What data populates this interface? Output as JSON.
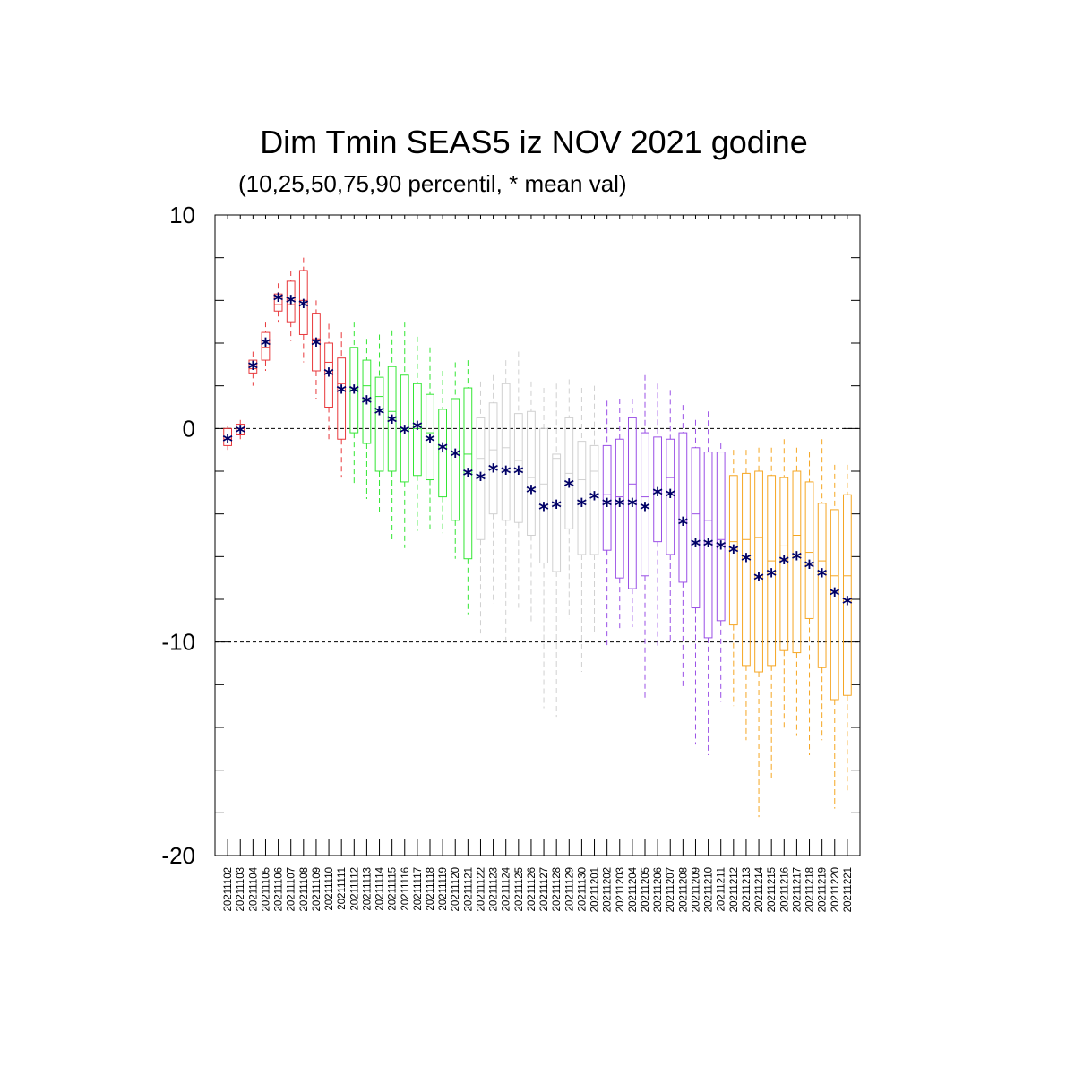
{
  "chart_data": {
    "type": "box",
    "title": "Dim Tmin SEAS5 iz NOV 2021 godine",
    "subtitle": "(10,25,50,75,90 percentil, * mean val)",
    "xlabel": "",
    "ylabel": "",
    "ylim": [
      -20,
      10
    ],
    "yticks": [
      -20,
      -10,
      0,
      10
    ],
    "dashed_reference_lines": [
      10,
      0,
      -10
    ],
    "grid": false,
    "legend": "none",
    "colors": {
      "red": "#e8383b",
      "green": "#33e633",
      "gray": "#d0d0d0",
      "purple": "#9a4fe6",
      "orange": "#f5a623",
      "mean": "#000066"
    },
    "categories": [
      "20211102",
      "20211103",
      "20211104",
      "20211105",
      "20211106",
      "20211107",
      "20211108",
      "20211109",
      "20211110",
      "20211111",
      "20211112",
      "20211113",
      "20211114",
      "20211115",
      "20211116",
      "20211117",
      "20211118",
      "20211119",
      "20211120",
      "20211121",
      "20211122",
      "20211123",
      "20211124",
      "20211125",
      "20211126",
      "20211127",
      "20211128",
      "20211129",
      "20211130",
      "20211201",
      "20211202",
      "20211203",
      "20211204",
      "20211205",
      "20211206",
      "20211207",
      "20211208",
      "20211209",
      "20211210",
      "20211211",
      "20211212",
      "20211213",
      "20211214",
      "20211215",
      "20211216",
      "20211217",
      "20211218",
      "20211219",
      "20211220",
      "20211221"
    ],
    "category_colors": [
      "red",
      "red",
      "red",
      "red",
      "red",
      "red",
      "red",
      "red",
      "red",
      "red",
      "green",
      "green",
      "green",
      "green",
      "green",
      "green",
      "green",
      "green",
      "green",
      "green",
      "gray",
      "gray",
      "gray",
      "gray",
      "gray",
      "gray",
      "gray",
      "gray",
      "gray",
      "gray",
      "purple",
      "purple",
      "purple",
      "purple",
      "purple",
      "purple",
      "purple",
      "purple",
      "purple",
      "purple",
      "orange",
      "orange",
      "orange",
      "orange",
      "orange",
      "orange",
      "orange",
      "orange",
      "orange",
      "orange"
    ],
    "p10": [
      -1.0,
      -0.5,
      2.0,
      2.7,
      5.0,
      4.1,
      3.1,
      1.4,
      -0.5,
      -2.3,
      -2.6,
      -3.3,
      -4.0,
      -5.3,
      -5.6,
      -4.8,
      -4.7,
      -4.9,
      -6.1,
      -8.7,
      -9.6,
      -8.2,
      -9.9,
      -8.4,
      -9.1,
      -13.1,
      -13.5,
      -8.9,
      -11.4,
      -9.6,
      -10.2,
      -9.4,
      -9.3,
      -12.7,
      -10.2,
      -10.0,
      -12.1,
      -14.8,
      -15.3,
      -12.8,
      -13.0,
      -14.6,
      -18.2,
      -16.5,
      -14.1,
      -14.4,
      -15.3,
      -14.6,
      -17.8,
      -17.0
    ],
    "p25": [
      -0.8,
      -0.3,
      2.6,
      3.2,
      5.5,
      5.0,
      4.4,
      2.7,
      1.0,
      -0.5,
      -0.2,
      -0.7,
      -2.0,
      -2.0,
      -2.5,
      -2.2,
      -2.4,
      -3.2,
      -4.3,
      -6.1,
      -5.2,
      -4.0,
      -4.3,
      -4.4,
      -5.0,
      -6.3,
      -6.7,
      -4.7,
      -5.9,
      -5.9,
      -5.7,
      -7.0,
      -7.5,
      -6.9,
      -5.3,
      -5.9,
      -7.2,
      -8.4,
      -9.8,
      -9.0,
      -9.2,
      -11.1,
      -11.4,
      -11.1,
      -10.4,
      -10.5,
      -8.9,
      -11.2,
      -12.7,
      -12.5
    ],
    "p50": [
      -0.5,
      0.0,
      2.8,
      3.8,
      5.8,
      5.8,
      6.0,
      4.2,
      3.1,
      2.1,
      1.8,
      2.0,
      1.5,
      0.8,
      0.0,
      0.0,
      -0.2,
      -1.1,
      -1.1,
      -1.2,
      -1.4,
      -1.0,
      -0.9,
      -1.5,
      -2.3,
      -2.6,
      -1.4,
      -2.1,
      -2.4,
      -2.0,
      -3.1,
      -3.2,
      -2.6,
      -3.2,
      -2.9,
      -2.3,
      -4.3,
      -4.0,
      -4.3,
      -5.2,
      -5.3,
      -5.2,
      -5.1,
      -6.2,
      -5.5,
      -5.0,
      -5.8,
      -6.2,
      -6.9,
      -6.9
    ],
    "p75": [
      0.0,
      0.2,
      3.2,
      4.5,
      6.3,
      6.9,
      7.4,
      5.4,
      4.0,
      3.3,
      3.8,
      3.2,
      2.4,
      2.9,
      2.5,
      2.1,
      1.6,
      0.9,
      1.4,
      1.9,
      0.5,
      1.2,
      2.1,
      0.7,
      0.8,
      0.0,
      -1.2,
      0.5,
      -0.6,
      -0.8,
      -0.8,
      -0.5,
      0.5,
      -0.2,
      -0.4,
      -0.5,
      -0.2,
      -0.9,
      -1.1,
      -1.1,
      -2.2,
      -2.1,
      -2.0,
      -2.2,
      -2.3,
      -2.0,
      -2.5,
      -3.5,
      -3.8,
      -3.1
    ],
    "p90": [
      0.1,
      0.4,
      3.6,
      5.0,
      6.8,
      7.4,
      8.0,
      6.0,
      4.9,
      4.5,
      5.0,
      4.2,
      4.4,
      4.6,
      5.0,
      4.3,
      3.8,
      2.7,
      3.1,
      3.2,
      2.2,
      2.5,
      3.2,
      3.6,
      2.2,
      1.9,
      2.1,
      2.3,
      1.9,
      2.0,
      1.3,
      1.4,
      1.4,
      2.5,
      2.1,
      1.8,
      1.1,
      0.4,
      0.8,
      -0.7,
      -1.0,
      -1.0,
      -0.9,
      -0.9,
      -0.5,
      -0.9,
      -1.1,
      -0.5,
      -1.7,
      -1.7
    ],
    "mean": [
      -0.5,
      -0.1,
      2.9,
      4.0,
      6.1,
      6.0,
      5.8,
      4.0,
      2.6,
      1.8,
      1.8,
      1.3,
      0.8,
      0.4,
      -0.1,
      0.1,
      -0.5,
      -0.9,
      -1.2,
      -2.1,
      -2.3,
      -1.9,
      -2.0,
      -2.0,
      -2.9,
      -3.7,
      -3.6,
      -2.6,
      -3.5,
      -3.2,
      -3.5,
      -3.5,
      -3.5,
      -3.7,
      -3.0,
      -3.1,
      -4.4,
      -5.4,
      -5.4,
      -5.5,
      -5.7,
      -6.1,
      -7.0,
      -6.8,
      -6.2,
      -6.0,
      -6.4,
      -6.8,
      -7.7,
      -8.1
    ]
  }
}
